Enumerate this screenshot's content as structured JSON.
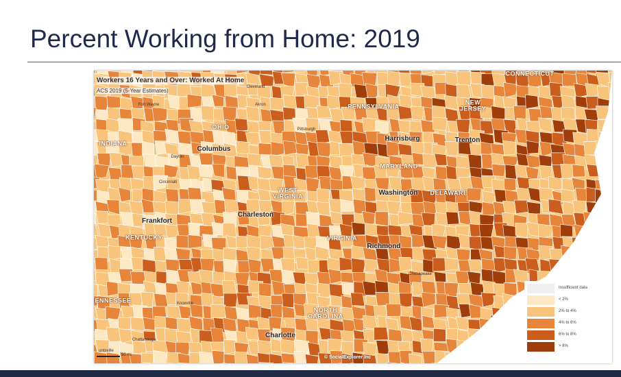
{
  "title": "Percent Working from Home: 2019",
  "map": {
    "title": "Workers 16 Years and Over: Worked At Home",
    "subtitle": "ACS 2019 (5-Year Estimates)",
    "labels": [
      "CONNECTICUT",
      "Cleveland",
      "Fort Wayne",
      "Akron",
      "PENNSYLVANIA",
      "NEW JERSEY",
      "Pittsburgh",
      "OHIO",
      "INDIANA",
      "Columbus",
      "Harrisburg",
      "Trenton",
      "Dayton",
      "MARYLAND",
      "Cincinnati",
      "WEST VIRGINIA",
      "Washington",
      "DELAWARE",
      "Charleston",
      "Frankfort",
      "KENTUCKY",
      "VIRGINIA",
      "Richmond",
      "Chesapeake",
      "ENNESSEE",
      "Knoxville",
      "NORTH CAROLINA",
      "Charlotte",
      "Chattanooga",
      "untsville"
    ],
    "scale": "50 mi",
    "credit": "© SocialExplorer Inc",
    "legend": [
      {
        "label": "Insufficient data",
        "color": "#efefef"
      },
      {
        "label": "< 2%",
        "color": "#fde8c4"
      },
      {
        "label": "2% to 4%",
        "color": "#f8c47c"
      },
      {
        "label": "4% to 6%",
        "color": "#e7853a"
      },
      {
        "label": "6% to 8%",
        "color": "#cb5e1d"
      },
      {
        "label": "> 8%",
        "color": "#9f3e0b"
      }
    ]
  }
}
